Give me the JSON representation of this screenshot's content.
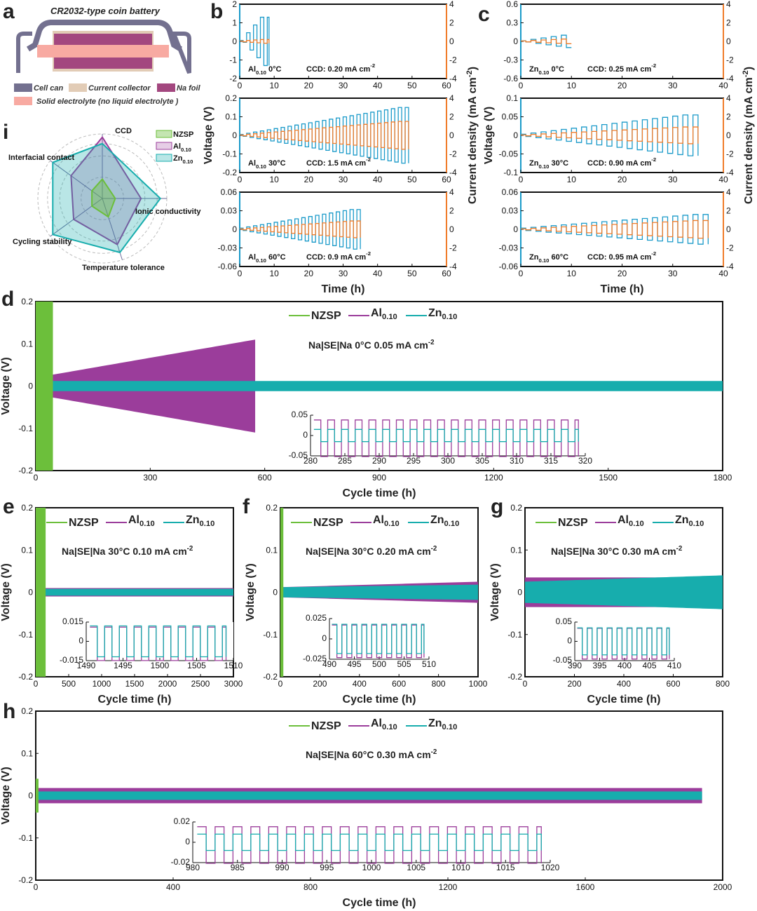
{
  "colors": {
    "nzsp": "#6cbf3b",
    "al": "#9b3d9b",
    "zn": "#17adad",
    "voltage": "#1a9ac9",
    "current": "#f07c2a",
    "can": "#73708f",
    "collector": "#e2ccb6",
    "nafoil": "#a3477f",
    "electrolyte": "#f8aaa2"
  },
  "panel_labels": {
    "a": "a",
    "b": "b",
    "c": "c",
    "d": "d",
    "e": "e",
    "f": "f",
    "g": "g",
    "h": "h",
    "i": "i"
  },
  "panel_a": {
    "title": "CR2032-type coin battery",
    "legend": [
      "Cell can",
      "Current collector",
      "Na foil",
      "Solid electrolyte (no liquid electrolyte )"
    ]
  },
  "axis_titles": {
    "voltage": "Voltage (V)",
    "current": "Current density (mA cm",
    "current_sup": "-2",
    "current_close": ")",
    "time": "Time (h)",
    "cycle_time": "Cycle time (h)"
  },
  "legend": {
    "nzsp": "NZSP",
    "al": "Al",
    "zn": "Zn",
    "sub": "0.10"
  },
  "chart_data": [
    {
      "type": "radar",
      "id": "i",
      "axes": [
        "CCD",
        "Ionic conductivity",
        "Temperature tolerance",
        "Cycling stability",
        "Interfacial contact"
      ],
      "series": [
        {
          "name": "NZSP",
          "values": [
            0.3,
            0.2,
            0.3,
            0.2,
            0.2
          ]
        },
        {
          "name": "Al0.10",
          "values": [
            0.95,
            0.6,
            0.75,
            0.55,
            0.6
          ]
        },
        {
          "name": "Zn0.10",
          "values": [
            0.85,
            0.9,
            0.88,
            0.95,
            0.95
          ]
        }
      ],
      "legend": [
        "NZSP",
        "Al",
        "Zn"
      ],
      "legend_sub": "0.10"
    },
    {
      "type": "line",
      "id": "b",
      "xlabel": "Time (h)",
      "ylabel": "Voltage (V)",
      "y2label": "Current density (mA cm-2)",
      "subplots": [
        {
          "name": "Al",
          "sub": "0.10",
          "cond": " 0°C",
          "ccd": "CCD: 0.20 mA cm",
          "ccd_sup": "-2",
          "xlim": [
            0,
            60
          ],
          "xticks": [
            0,
            10,
            20,
            30,
            40,
            50,
            60
          ],
          "ylim": [
            -2,
            2
          ],
          "yticks": [
            -2,
            -1,
            0,
            1,
            2
          ],
          "y2lim": [
            -4,
            4
          ],
          "y2ticks": [
            -4,
            -2,
            0,
            2,
            4
          ],
          "end_time": 8.5,
          "period": 2,
          "v_start": 0.05,
          "v_end": 1.3,
          "i_start": 0.05,
          "i_end": 0.2
        },
        {
          "name": "Al",
          "sub": "0.10",
          "cond": " 30°C",
          "ccd": "CCD: 1.5 mA cm",
          "ccd_sup": "-2",
          "xlim": [
            0,
            60
          ],
          "xticks": [
            0,
            10,
            20,
            30,
            40,
            50,
            60
          ],
          "ylim": [
            -0.2,
            0.2
          ],
          "yticks": [
            -0.2,
            -0.1,
            0,
            0.1,
            0.2
          ],
          "y2lim": [
            -4,
            4
          ],
          "y2ticks": [
            -4,
            -2,
            0,
            2,
            4
          ],
          "end_time": 49,
          "period": 2,
          "v_start": 0.005,
          "v_end": 0.15,
          "i_start": 0.05,
          "i_end": 1.5
        },
        {
          "name": "Al",
          "sub": "0.10",
          "cond": " 60°C",
          "ccd": "CCD: 0.9 mA cm",
          "ccd_sup": "-2",
          "xlim": [
            0,
            60
          ],
          "xticks": [
            0,
            10,
            20,
            30,
            40,
            50,
            60
          ],
          "ylim": [
            -0.06,
            0.06
          ],
          "yticks": [
            -0.06,
            -0.03,
            0,
            0.03,
            0.06
          ],
          "y2lim": [
            -4,
            4
          ],
          "y2ticks": [
            -4,
            -2,
            0,
            2,
            4
          ],
          "end_time": 35,
          "period": 2,
          "v_start": 0.002,
          "v_end": 0.032,
          "i_start": 0.05,
          "i_end": 0.9
        }
      ]
    },
    {
      "type": "line",
      "id": "c",
      "xlabel": "Time (h)",
      "ylabel": "Voltage (V)",
      "y2label": "Current density (mA cm-2)",
      "subplots": [
        {
          "name": "Zn",
          "sub": "0.10",
          "cond": " 0°C",
          "ccd": "CCD: 0.25 mA cm",
          "ccd_sup": "-2",
          "xlim": [
            0,
            40
          ],
          "xticks": [
            0,
            10,
            20,
            30,
            40
          ],
          "ylim": [
            -0.6,
            0.6
          ],
          "yticks": [
            -0.6,
            -0.3,
            0,
            0.3,
            0.6
          ],
          "y2lim": [
            -4,
            4
          ],
          "y2ticks": [
            -4,
            -2,
            0,
            2,
            4
          ],
          "end_time": 10,
          "period": 2,
          "v_start": 0.01,
          "v_end": 0.1,
          "i_start": 0.05,
          "i_end": 0.25
        },
        {
          "name": "Zn",
          "sub": "0.10",
          "cond": " 30°C",
          "ccd": "CCD: 0.90 mA cm",
          "ccd_sup": "-2",
          "xlim": [
            0,
            40
          ],
          "xticks": [
            0,
            10,
            20,
            30,
            40
          ],
          "ylim": [
            -0.1,
            0.1
          ],
          "yticks": [
            -0.1,
            -0.05,
            0,
            0.05,
            0.1
          ],
          "y2lim": [
            -4,
            4
          ],
          "y2ticks": [
            -4,
            -2,
            0,
            2,
            4
          ],
          "end_time": 35,
          "period": 2,
          "v_start": 0.003,
          "v_end": 0.055,
          "i_start": 0.05,
          "i_end": 0.9
        },
        {
          "name": "Zn",
          "sub": "0.10",
          "cond": " 60°C",
          "ccd": "CCD: 0.95 mA cm",
          "ccd_sup": "-2",
          "xlim": [
            0,
            40
          ],
          "xticks": [
            0,
            10,
            20,
            30,
            40
          ],
          "ylim": [
            -0.06,
            0.06
          ],
          "yticks": [
            -0.06,
            -0.03,
            0,
            0.03,
            0.06
          ],
          "y2lim": [
            -4,
            4
          ],
          "y2ticks": [
            -4,
            -2,
            0,
            2,
            4
          ],
          "end_time": 37,
          "period": 2,
          "v_start": 0.002,
          "v_end": 0.024,
          "i_start": 0.05,
          "i_end": 0.95
        }
      ]
    },
    {
      "type": "line",
      "id": "d",
      "cond": "Na|SE|Na 0°C 0.05 mA cm",
      "cond_sup": "-2",
      "xlabel": "Cycle time (h)",
      "ylabel": "Voltage (V)",
      "xlim": [
        0,
        1800
      ],
      "xticks": [
        0,
        300,
        600,
        900,
        1200,
        1500,
        1800
      ],
      "ylim": [
        -0.2,
        0.2
      ],
      "yticks": [
        -0.2,
        -0.1,
        0,
        0.1,
        0.2
      ],
      "series": [
        {
          "name": "Al0.10",
          "end": 575,
          "amp_start": 0.02,
          "amp_end": 0.11
        },
        {
          "name": "Zn0.10",
          "end": 1800,
          "amp_start": 0.012,
          "amp_end": 0.012
        },
        {
          "name": "NZSP",
          "end": 45,
          "amp_start": 0.2,
          "amp_end": 0.2
        }
      ],
      "inset": {
        "xlim": [
          280,
          320
        ],
        "xticks": [
          280,
          285,
          290,
          295,
          300,
          305,
          310,
          315,
          320
        ],
        "ylim": [
          -0.05,
          0.05
        ],
        "yticks": [
          -0.05,
          0,
          0.05
        ],
        "al_amp": 0.045,
        "zn_amp": 0.015
      }
    },
    {
      "type": "line",
      "id": "e",
      "cond": "Na|SE|Na 30°C 0.10 mA cm",
      "cond_sup": "-2",
      "xlabel": "Cycle time (h)",
      "ylabel": "Voltage (V)",
      "xlim": [
        0,
        3000
      ],
      "xticks": [
        0,
        500,
        1000,
        1500,
        2000,
        2500,
        3000
      ],
      "ylim": [
        -0.2,
        0.2
      ],
      "yticks": [
        -0.2,
        -0.1,
        0,
        0.1,
        0.2
      ],
      "series": [
        {
          "name": "Al0.10",
          "end": 3000,
          "amp_start": 0.01,
          "amp_end": 0.01
        },
        {
          "name": "Zn0.10",
          "end": 3000,
          "amp_start": 0.008,
          "amp_end": 0.008
        },
        {
          "name": "NZSP",
          "end": 150,
          "amp_start": 0.2,
          "amp_end": 0.2
        }
      ],
      "inset": {
        "xlim": [
          1490,
          1510
        ],
        "xticks": [
          1490,
          1495,
          1500,
          1505,
          1510
        ],
        "ylim": [
          -0.015,
          0.015
        ],
        "yticks": [
          -0.015,
          0,
          0.015
        ],
        "al_amp": 0.013,
        "zn_amp": 0.012
      }
    },
    {
      "type": "line",
      "id": "f",
      "cond": "Na|SE|Na 30°C 0.20 mA cm",
      "cond_sup": "-2",
      "xlabel": "Cycle time (h)",
      "ylabel": "Voltage (V)",
      "xlim": [
        0,
        1000
      ],
      "xticks": [
        0,
        200,
        400,
        600,
        800,
        1000
      ],
      "ylim": [
        -0.2,
        0.2
      ],
      "yticks": [
        -0.2,
        -0.1,
        0,
        0.1,
        0.2
      ],
      "series": [
        {
          "name": "Al0.10",
          "end": 1000,
          "amp_start": 0.012,
          "amp_end": 0.025
        },
        {
          "name": "Zn0.10",
          "end": 1000,
          "amp_start": 0.012,
          "amp_end": 0.018
        },
        {
          "name": "NZSP",
          "end": 15,
          "amp_start": 0.2,
          "amp_end": 0.2
        }
      ],
      "inset": {
        "xlim": [
          490,
          510
        ],
        "xticks": [
          490,
          495,
          500,
          505,
          510
        ],
        "ylim": [
          -0.025,
          0.025
        ],
        "yticks": [
          -0.025,
          0,
          0.025
        ],
        "al_amp": 0.02,
        "zn_amp": 0.018
      }
    },
    {
      "type": "line",
      "id": "g",
      "cond": "Na|SE|Na 30°C 0.30 mA cm",
      "cond_sup": "-2",
      "xlabel": "Cycle time (h)",
      "ylabel": "Voltage (V)",
      "xlim": [
        0,
        800
      ],
      "xticks": [
        0,
        200,
        400,
        600,
        800
      ],
      "ylim": [
        -0.2,
        0.2
      ],
      "yticks": [
        -0.2,
        -0.1,
        0,
        0.1,
        0.2
      ],
      "series": [
        {
          "name": "Al0.10",
          "end": 600,
          "amp_start": 0.035,
          "amp_end": 0.035
        },
        {
          "name": "Zn0.10",
          "end": 800,
          "amp_start": 0.025,
          "amp_end": 0.04
        }
      ],
      "inset": {
        "xlim": [
          390,
          410
        ],
        "xticks": [
          390,
          395,
          400,
          405,
          410
        ],
        "ylim": [
          -0.05,
          0.05
        ],
        "yticks": [
          -0.05,
          0,
          0.05
        ],
        "al_amp": 0.04,
        "zn_amp": 0.035
      }
    },
    {
      "type": "line",
      "id": "h",
      "cond": "Na|SE|Na 60°C 0.30 mA cm",
      "cond_sup": "-2",
      "xlabel": "Cycle time (h)",
      "ylabel": "Voltage (V)",
      "xlim": [
        0,
        2000
      ],
      "xticks": [
        0,
        400,
        800,
        1200,
        1600,
        2000
      ],
      "ylim": [
        -0.2,
        0.2
      ],
      "yticks": [
        -0.2,
        -0.1,
        0,
        0.1,
        0.2
      ],
      "series": [
        {
          "name": "Al0.10",
          "end": 1940,
          "amp_start": 0.018,
          "amp_end": 0.018
        },
        {
          "name": "Zn0.10",
          "end": 1940,
          "amp_start": 0.01,
          "amp_end": 0.01
        },
        {
          "name": "NZSP",
          "end": 8,
          "amp_start": 0.04,
          "amp_end": 0.04
        }
      ],
      "inset": {
        "xlim": [
          980,
          1020
        ],
        "xticks": [
          980,
          985,
          990,
          995,
          1000,
          1005,
          1010,
          1015,
          1020
        ],
        "ylim": [
          -0.02,
          0.02
        ],
        "yticks": [
          -0.02,
          0,
          0.02
        ],
        "al_amp": 0.018,
        "zn_amp": 0.008
      }
    }
  ]
}
